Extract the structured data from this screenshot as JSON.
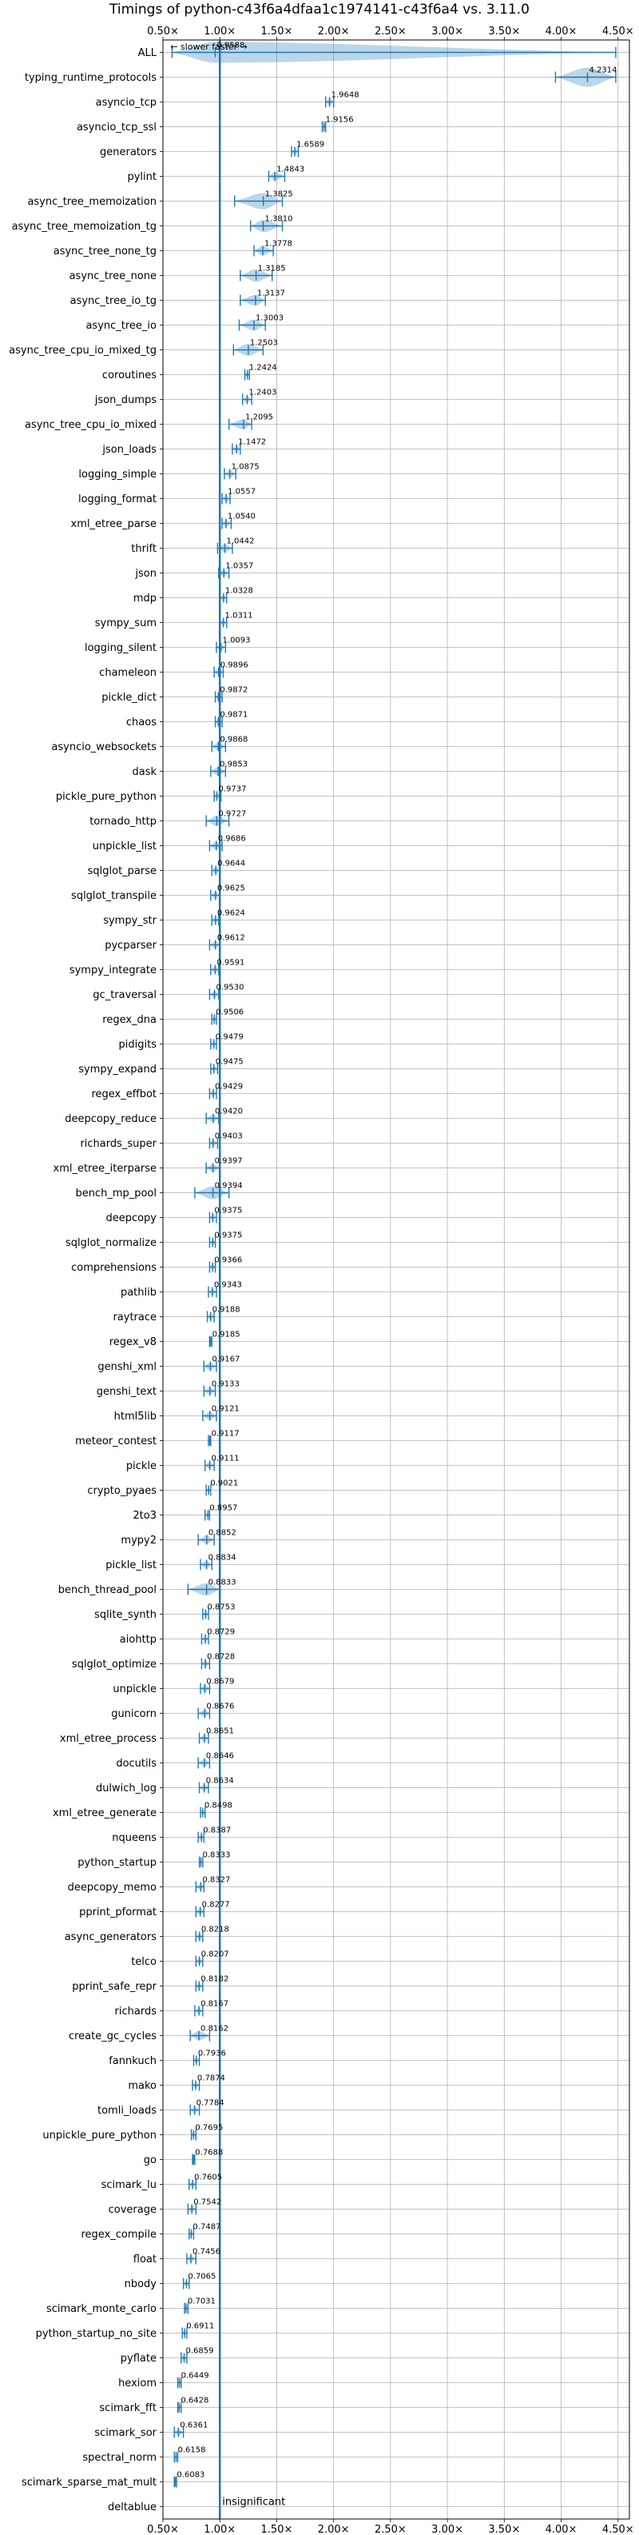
{
  "chart_data": {
    "type": "violin",
    "title": "Timings of python-c43f6a4dfaa1c1974141-c43f6a4 vs. 3.11.0",
    "direction_note": "← slower    faster →",
    "significance_note": "insignificant",
    "xlim": [
      0.5,
      4.6
    ],
    "x_ticks": [
      0.5,
      1.0,
      1.5,
      2.0,
      2.5,
      3.0,
      3.5,
      4.0,
      4.5
    ],
    "x_tick_labels": [
      "0.50×",
      "1.00×",
      "1.50×",
      "2.00×",
      "2.50×",
      "3.00×",
      "3.50×",
      "4.00×",
      "4.50×"
    ],
    "reference_line": 1.0,
    "grid": true,
    "categories": [
      "ALL",
      "typing_runtime_protocols",
      "asyncio_tcp",
      "asyncio_tcp_ssl",
      "generators",
      "pylint",
      "async_tree_memoization",
      "async_tree_memoization_tg",
      "async_tree_none_tg",
      "async_tree_none",
      "async_tree_io_tg",
      "async_tree_io",
      "async_tree_cpu_io_mixed_tg",
      "coroutines",
      "json_dumps",
      "async_tree_cpu_io_mixed",
      "json_loads",
      "logging_simple",
      "logging_format",
      "xml_etree_parse",
      "thrift",
      "json",
      "mdp",
      "sympy_sum",
      "logging_silent",
      "chameleon",
      "pickle_dict",
      "chaos",
      "asyncio_websockets",
      "dask",
      "pickle_pure_python",
      "tornado_http",
      "unpickle_list",
      "sqlglot_parse",
      "sqlglot_transpile",
      "sympy_str",
      "pycparser",
      "sympy_integrate",
      "gc_traversal",
      "regex_dna",
      "pidigits",
      "sympy_expand",
      "regex_effbot",
      "deepcopy_reduce",
      "richards_super",
      "xml_etree_iterparse",
      "bench_mp_pool",
      "deepcopy",
      "sqlglot_normalize",
      "comprehensions",
      "pathlib",
      "raytrace",
      "regex_v8",
      "genshi_xml",
      "genshi_text",
      "html5lib",
      "meteor_contest",
      "pickle",
      "crypto_pyaes",
      "2to3",
      "mypy2",
      "pickle_list",
      "bench_thread_pool",
      "sqlite_synth",
      "aiohttp",
      "sqlglot_optimize",
      "unpickle",
      "gunicorn",
      "xml_etree_process",
      "docutils",
      "dulwich_log",
      "xml_etree_generate",
      "nqueens",
      "python_startup",
      "deepcopy_memo",
      "pprint_pformat",
      "async_generators",
      "telco",
      "pprint_safe_repr",
      "richards",
      "create_gc_cycles",
      "fannkuch",
      "mako",
      "tomli_loads",
      "unpickle_pure_python",
      "go",
      "scimark_lu",
      "coverage",
      "regex_compile",
      "float",
      "nbody",
      "scimark_monte_carlo",
      "python_startup_no_site",
      "pyflate",
      "hexiom",
      "scimark_fft",
      "scimark_sor",
      "spectral_norm",
      "scimark_sparse_mat_mult",
      "deltablue"
    ],
    "values": [
      0.9588,
      4.2314,
      1.9648,
      1.9156,
      1.6589,
      1.4843,
      1.3825,
      1.381,
      1.3778,
      1.3185,
      1.3137,
      1.3003,
      1.2503,
      1.2424,
      1.2403,
      1.2095,
      1.1472,
      1.0875,
      1.0557,
      1.054,
      1.0442,
      1.0357,
      1.0328,
      1.0311,
      1.0093,
      0.9896,
      0.9872,
      0.9871,
      0.9868,
      0.9853,
      0.9737,
      0.9727,
      0.9686,
      0.9644,
      0.9625,
      0.9624,
      0.9612,
      0.9591,
      0.953,
      0.9506,
      0.9479,
      0.9475,
      0.9429,
      0.942,
      0.9403,
      0.9397,
      0.9394,
      0.9375,
      0.9375,
      0.9366,
      0.9343,
      0.9188,
      0.9185,
      0.9167,
      0.9133,
      0.9121,
      0.9117,
      0.9111,
      0.9021,
      0.8957,
      0.8852,
      0.8834,
      0.8833,
      0.8753,
      0.8729,
      0.8728,
      0.8679,
      0.8676,
      0.8651,
      0.8646,
      0.8634,
      0.8498,
      0.8387,
      0.8333,
      0.8327,
      0.8277,
      0.8218,
      0.8207,
      0.8182,
      0.8167,
      0.8162,
      0.7936,
      0.7874,
      0.7784,
      0.7695,
      0.7688,
      0.7605,
      0.7542,
      0.7487,
      0.7456,
      0.7065,
      0.7031,
      0.6911,
      0.6859,
      0.6449,
      0.6428,
      0.6361,
      0.6158,
      0.6083,
      null
    ],
    "value_labels": [
      "0.9588",
      "4.2314",
      "1.9648",
      "1.9156",
      "1.6589",
      "1.4843",
      "1.3825",
      "1.3810",
      "1.3778",
      "1.3185",
      "1.3137",
      "1.3003",
      "1.2503",
      "1.2424",
      "1.2403",
      "1.2095",
      "1.1472",
      "1.0875",
      "1.0557",
      "1.0540",
      "1.0442",
      "1.0357",
      "1.0328",
      "1.0311",
      "1.0093",
      "0.9896",
      "0.9872",
      "0.9871",
      "0.9868",
      "0.9853",
      "0.9737",
      "0.9727",
      "0.9686",
      "0.9644",
      "0.9625",
      "0.9624",
      "0.9612",
      "0.9591",
      "0.9530",
      "0.9506",
      "0.9479",
      "0.9475",
      "0.9429",
      "0.9420",
      "0.9403",
      "0.9397",
      "0.9394",
      "0.9375",
      "0.9375",
      "0.9366",
      "0.9343",
      "0.9188",
      "0.9185",
      "0.9167",
      "0.9133",
      "0.9121",
      "0.9117",
      "0.9111",
      "0.9021",
      "0.8957",
      "0.8852",
      "0.8834",
      "0.8833",
      "0.8753",
      "0.8729",
      "0.8728",
      "0.8679",
      "0.8676",
      "0.8651",
      "0.8646",
      "0.8634",
      "0.8498",
      "0.8387",
      "0.8333",
      "0.8327",
      "0.8277",
      "0.8218",
      "0.8207",
      "0.8182",
      "0.8167",
      "0.8162",
      "0.7936",
      "0.7874",
      "0.7784",
      "0.7695",
      "0.7688",
      "0.7605",
      "0.7542",
      "0.7487",
      "0.7456",
      "0.7065",
      "0.7031",
      "0.6911",
      "0.6859",
      "0.6449",
      "0.6428",
      "0.6361",
      "0.6158",
      "0.6083",
      ""
    ],
    "ranges": [
      [
        0.58,
        4.48
      ],
      [
        3.95,
        4.48
      ],
      [
        1.93,
        2.0
      ],
      [
        1.9,
        1.93
      ],
      [
        1.63,
        1.69
      ],
      [
        1.43,
        1.57
      ],
      [
        1.13,
        1.55
      ],
      [
        1.27,
        1.55
      ],
      [
        1.3,
        1.47
      ],
      [
        1.18,
        1.46
      ],
      [
        1.18,
        1.4
      ],
      [
        1.17,
        1.4
      ],
      [
        1.12,
        1.38
      ],
      [
        1.22,
        1.26
      ],
      [
        1.2,
        1.28
      ],
      [
        1.08,
        1.28
      ],
      [
        1.11,
        1.18
      ],
      [
        1.04,
        1.14
      ],
      [
        1.02,
        1.09
      ],
      [
        1.02,
        1.1
      ],
      [
        0.98,
        1.11
      ],
      [
        0.99,
        1.08
      ],
      [
        1.0,
        1.06
      ],
      [
        1.0,
        1.06
      ],
      [
        0.97,
        1.05
      ],
      [
        0.95,
        1.03
      ],
      [
        0.96,
        1.02
      ],
      [
        0.96,
        1.02
      ],
      [
        0.93,
        1.05
      ],
      [
        0.92,
        1.05
      ],
      [
        0.95,
        1.01
      ],
      [
        0.88,
        1.08
      ],
      [
        0.91,
        1.02
      ],
      [
        0.93,
        1.0
      ],
      [
        0.92,
        1.0
      ],
      [
        0.93,
        0.99
      ],
      [
        0.91,
        1.0
      ],
      [
        0.92,
        0.99
      ],
      [
        0.91,
        0.99
      ],
      [
        0.93,
        0.97
      ],
      [
        0.92,
        0.97
      ],
      [
        0.92,
        0.98
      ],
      [
        0.91,
        0.97
      ],
      [
        0.88,
        0.99
      ],
      [
        0.91,
        0.98
      ],
      [
        0.88,
        1.0
      ],
      [
        0.78,
        1.08
      ],
      [
        0.91,
        0.97
      ],
      [
        0.91,
        0.96
      ],
      [
        0.91,
        0.96
      ],
      [
        0.9,
        0.97
      ],
      [
        0.89,
        0.95
      ],
      [
        0.91,
        0.93
      ],
      [
        0.86,
        0.97
      ],
      [
        0.86,
        0.96
      ],
      [
        0.85,
        0.97
      ],
      [
        0.9,
        0.92
      ],
      [
        0.87,
        0.95
      ],
      [
        0.88,
        0.92
      ],
      [
        0.87,
        0.91
      ],
      [
        0.81,
        0.95
      ],
      [
        0.83,
        0.93
      ],
      [
        0.72,
        1.0
      ],
      [
        0.85,
        0.9
      ],
      [
        0.84,
        0.9
      ],
      [
        0.84,
        0.91
      ],
      [
        0.83,
        0.91
      ],
      [
        0.81,
        0.91
      ],
      [
        0.82,
        0.9
      ],
      [
        0.81,
        0.91
      ],
      [
        0.82,
        0.9
      ],
      [
        0.83,
        0.87
      ],
      [
        0.81,
        0.86
      ],
      [
        0.82,
        0.85
      ],
      [
        0.79,
        0.86
      ],
      [
        0.79,
        0.86
      ],
      [
        0.79,
        0.85
      ],
      [
        0.79,
        0.85
      ],
      [
        0.79,
        0.85
      ],
      [
        0.78,
        0.85
      ],
      [
        0.74,
        0.91
      ],
      [
        0.77,
        0.82
      ],
      [
        0.76,
        0.82
      ],
      [
        0.74,
        0.82
      ],
      [
        0.75,
        0.79
      ],
      [
        0.76,
        0.78
      ],
      [
        0.73,
        0.79
      ],
      [
        0.72,
        0.79
      ],
      [
        0.73,
        0.77
      ],
      [
        0.71,
        0.79
      ],
      [
        0.68,
        0.73
      ],
      [
        0.69,
        0.72
      ],
      [
        0.67,
        0.71
      ],
      [
        0.66,
        0.71
      ],
      [
        0.63,
        0.66
      ],
      [
        0.63,
        0.66
      ],
      [
        0.6,
        0.68
      ],
      [
        0.6,
        0.63
      ],
      [
        0.6,
        0.62
      ],
      null
    ]
  }
}
